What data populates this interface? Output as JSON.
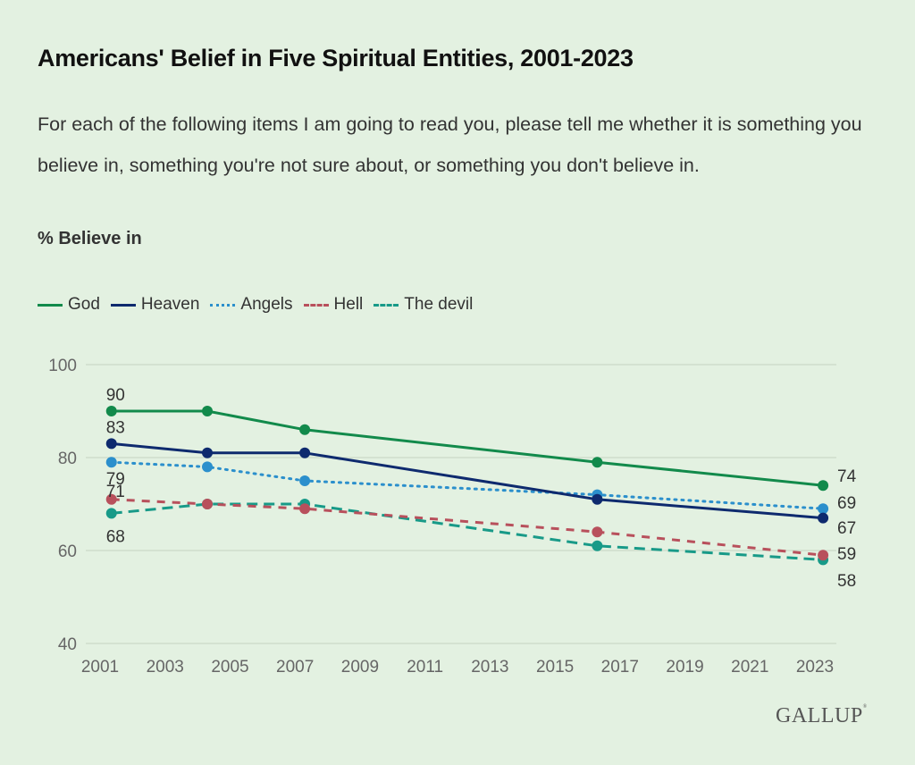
{
  "header": {
    "title": "Americans' Belief in Five Spiritual Entities, 2001-2023",
    "subtitle": "For each of the following items I am going to read you, please tell me whether it is something you believe in, something you're not sure about, or something you don't believe in.",
    "measure_label": "% Believe in"
  },
  "brand": {
    "name": "GALLUP",
    "mark": "®"
  },
  "chart_data": {
    "type": "line",
    "title": "Americans' Belief in Five Spiritual Entities, 2001-2023",
    "xlabel": "",
    "ylabel": "% Believe in",
    "x": [
      2001.35,
      2004.3,
      2007.3,
      2016.3,
      2023.25
    ],
    "x_labels": [
      "2001",
      "2004",
      "2007",
      "2016",
      "2023"
    ],
    "xlim": [
      2001,
      2023
    ],
    "ylim": [
      40,
      100
    ],
    "xticks": [
      "2001",
      "2003",
      "2005",
      "2007",
      "2009",
      "2011",
      "2013",
      "2015",
      "2017",
      "2019",
      "2021",
      "2023"
    ],
    "yticks": [
      "40",
      "60",
      "80",
      "100"
    ],
    "grid": true,
    "legend": "top-left",
    "series": [
      {
        "name": "God",
        "values": [
          90,
          90,
          86,
          79,
          74
        ],
        "color": "#128a4b",
        "style": "solid",
        "labels": {
          "first": "90",
          "last": "74"
        }
      },
      {
        "name": "Heaven",
        "values": [
          83,
          81,
          81,
          71,
          67
        ],
        "color": "#0e2a6e",
        "style": "solid",
        "labels": {
          "first": "83",
          "last": "67"
        }
      },
      {
        "name": "Angels",
        "values": [
          79,
          78,
          75,
          72,
          69
        ],
        "color": "#2b8fcc",
        "style": "dotted",
        "labels": {
          "first": "79",
          "last": "69"
        }
      },
      {
        "name": "Hell",
        "values": [
          71,
          70,
          69,
          64,
          59
        ],
        "color": "#b8505c",
        "style": "dashed",
        "labels": {
          "first": "71",
          "last": "59"
        }
      },
      {
        "name": "The devil",
        "values": [
          68,
          70,
          70,
          61,
          58
        ],
        "color": "#189a88",
        "style": "longdash",
        "labels": {
          "first": "68",
          "last": "58"
        }
      }
    ]
  }
}
